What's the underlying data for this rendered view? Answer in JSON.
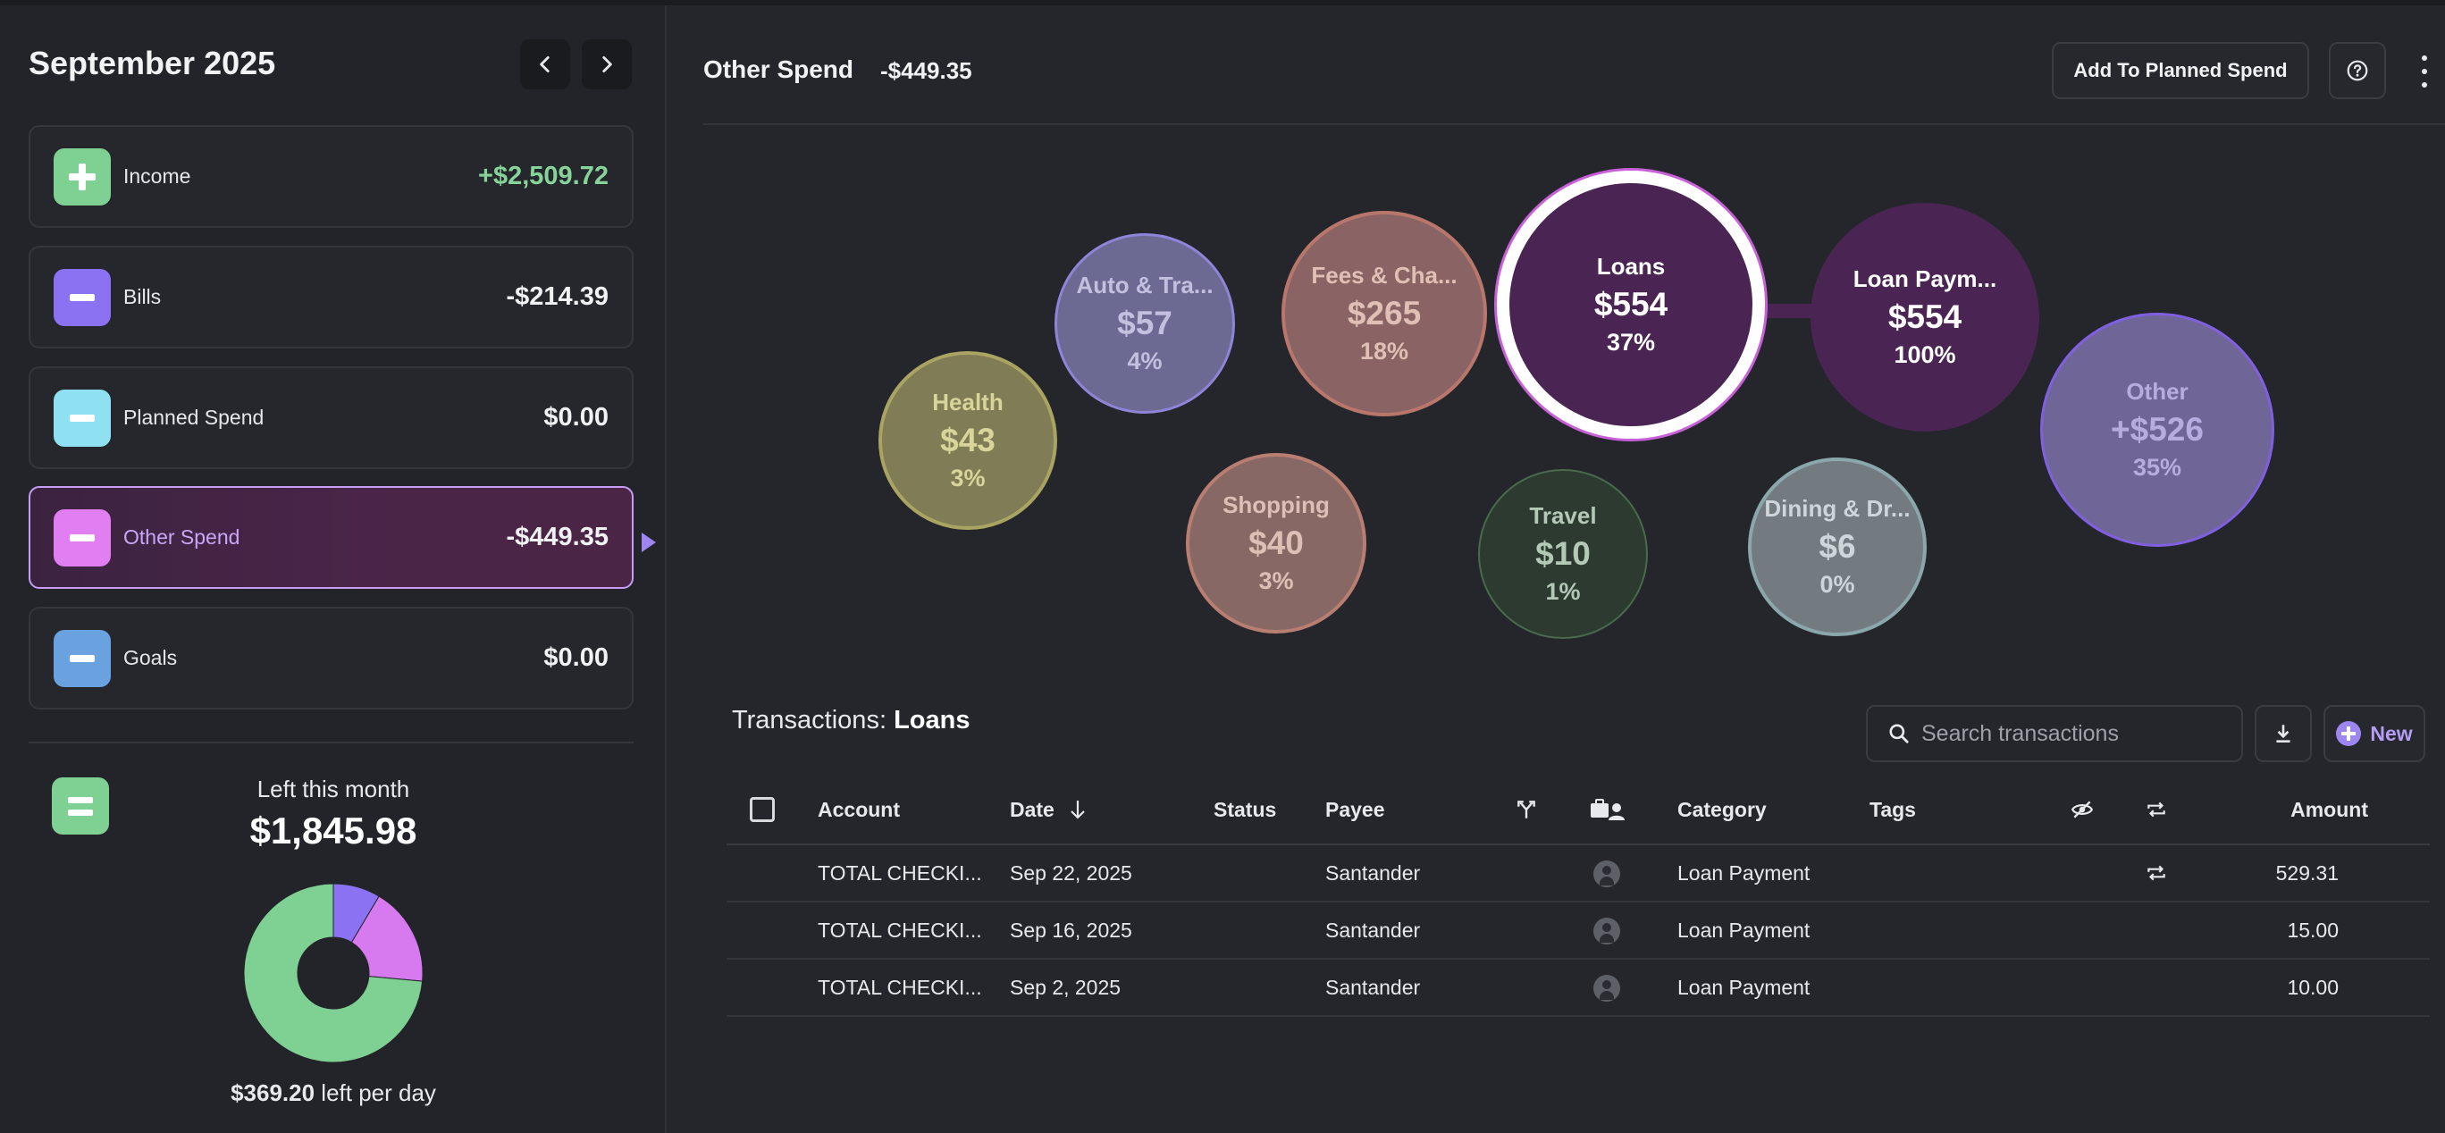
{
  "sidebar": {
    "month": "September 2025",
    "categories": [
      {
        "label": "Income",
        "amount": "+$2,509.72",
        "color": "#7fd093"
      },
      {
        "label": "Bills",
        "amount": "-$214.39",
        "color": "#8b72f2"
      },
      {
        "label": "Planned Spend",
        "amount": "$0.00",
        "color": "#8fe0f0"
      },
      {
        "label": "Other Spend",
        "amount": "-$449.35",
        "color": "#e07ef2"
      },
      {
        "label": "Goals",
        "amount": "$0.00",
        "color": "#6aa2e0"
      }
    ],
    "left_label": "Left this month",
    "left_amount": "$1,845.98",
    "per_day_amount": "$369.20",
    "per_day_suffix": " left per day",
    "donut": [
      {
        "label": "Bills",
        "value": 214.39,
        "color": "#8b72f2"
      },
      {
        "label": "Other Spend",
        "value": 449.35,
        "color": "#d77af0"
      },
      {
        "label": "Left",
        "value": 1845.98,
        "color": "#7fd093"
      }
    ]
  },
  "header": {
    "title": "Other Spend",
    "total": "-$449.35",
    "add_button": "Add To Planned Spend"
  },
  "bubbles": [
    {
      "name": "Health",
      "amount": "$43",
      "pct": "3%"
    },
    {
      "name": "Auto & Tra...",
      "amount": "$57",
      "pct": "4%"
    },
    {
      "name": "Fees & Cha...",
      "amount": "$265",
      "pct": "18%"
    },
    {
      "name": "Loans",
      "amount": "$554",
      "pct": "37%"
    },
    {
      "name": "Loan Paym...",
      "amount": "$554",
      "pct": "100%"
    },
    {
      "name": "Other",
      "amount": "+$526",
      "pct": "35%"
    },
    {
      "name": "Shopping",
      "amount": "$40",
      "pct": "3%"
    },
    {
      "name": "Travel",
      "amount": "$10",
      "pct": "1%"
    },
    {
      "name": "Dining & Dr...",
      "amount": "$6",
      "pct": "0%"
    }
  ],
  "transactions": {
    "title_prefix": "Transactions: ",
    "title_category": "Loans",
    "search_placeholder": "Search transactions",
    "new_label": "New",
    "headers": {
      "account": "Account",
      "date": "Date",
      "status": "Status",
      "payee": "Payee",
      "category": "Category",
      "tags": "Tags",
      "amount": "Amount"
    },
    "rows": [
      {
        "account": "TOTAL CHECKI...",
        "date": "Sep 22, 2025",
        "payee": "Santander",
        "category": "Loan Payment",
        "amount": "529.31",
        "recurring": true
      },
      {
        "account": "TOTAL CHECKI...",
        "date": "Sep 16, 2025",
        "payee": "Santander",
        "category": "Loan Payment",
        "amount": "15.00",
        "recurring": false
      },
      {
        "account": "TOTAL CHECKI...",
        "date": "Sep 2, 2025",
        "payee": "Santander",
        "category": "Loan Payment",
        "amount": "10.00",
        "recurring": false
      }
    ]
  }
}
